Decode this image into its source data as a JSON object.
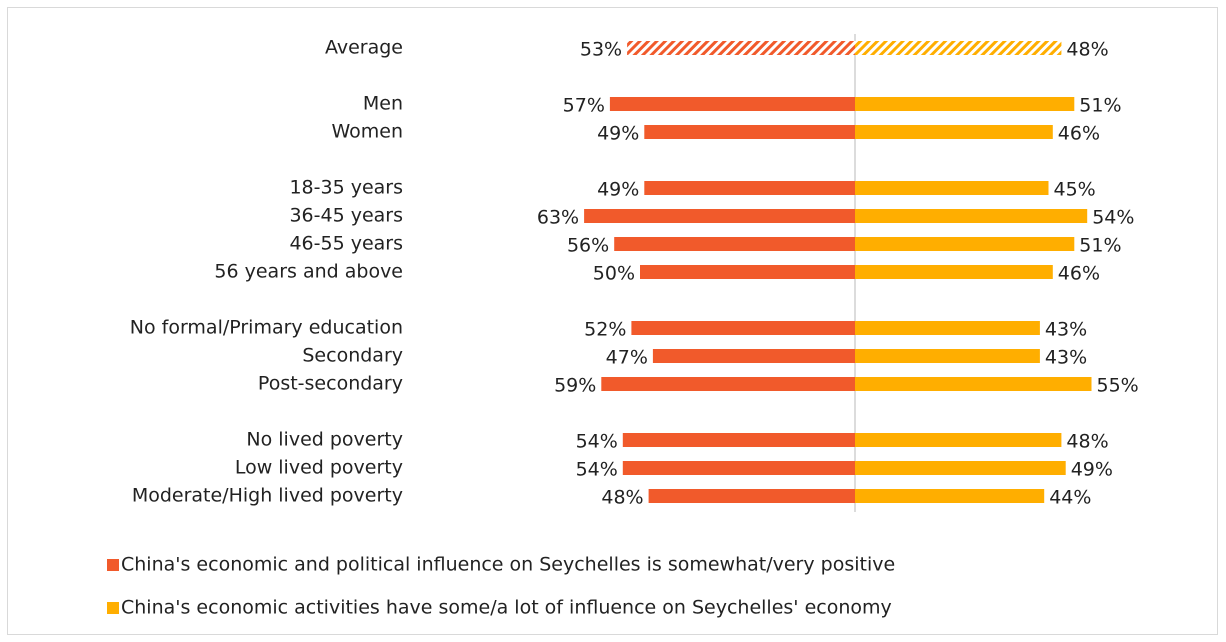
{
  "chart_data": {
    "type": "diverging-bar",
    "categories": [
      "Average",
      null,
      "Men",
      "Women",
      null,
      "18-35 years",
      "36-45 years",
      "46-55 years",
      "56 years and above",
      null,
      "No formal/Primary education",
      "Secondary",
      "Post-secondary",
      null,
      "No lived poverty",
      "Low lived poverty",
      "Moderate/High lived poverty"
    ],
    "series": [
      {
        "name": "China's economic and political influence on Seychelles is somewhat/very positive",
        "color": "#f15a2b",
        "side": "left",
        "hatched_index": 0,
        "values": [
          53,
          null,
          57,
          49,
          null,
          49,
          63,
          56,
          50,
          null,
          52,
          47,
          59,
          null,
          54,
          54,
          48
        ],
        "value_labels": [
          "53%",
          null,
          "57%",
          "49%",
          null,
          "49%",
          "63%",
          "56%",
          "50%",
          null,
          "52%",
          "47%",
          "59%",
          null,
          "54%",
          "54%",
          "48%"
        ]
      },
      {
        "name": "China's economic activities have some/a lot of influence on Seychelles' economy",
        "color": "#ffae00",
        "side": "right",
        "hatched_index": 0,
        "values": [
          48,
          null,
          51,
          46,
          null,
          45,
          54,
          51,
          46,
          null,
          43,
          43,
          55,
          null,
          48,
          49,
          44
        ],
        "value_labels": [
          "48%",
          null,
          "51%",
          "46%",
          null,
          "45%",
          "54%",
          "51%",
          "46%",
          null,
          "43%",
          "43%",
          "55%",
          null,
          "48%",
          "49%",
          "44%"
        ]
      }
    ],
    "legend": "bottom"
  }
}
